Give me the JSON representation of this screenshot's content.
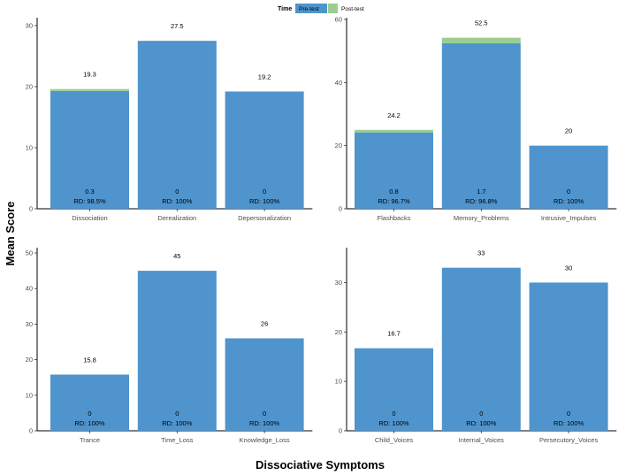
{
  "chart_data": {
    "type": "bar",
    "title": "",
    "xlabel": "Dissociative Symptoms",
    "ylabel": "Mean Score",
    "legend": {
      "title": "Time",
      "position": "top",
      "entries": [
        {
          "name": "Pre-test",
          "color": "#4f94cd"
        },
        {
          "name": "Post-test",
          "color": "#9acd8f"
        }
      ]
    },
    "panels": [
      {
        "ylim": [
          0,
          31
        ],
        "yticks": [
          0,
          10,
          20,
          30
        ],
        "categories": [
          "Dissociation",
          "Derealization",
          "Depersonalization"
        ],
        "series": [
          {
            "name": "Pre-test",
            "values": [
              19.3,
              27.5,
              19.2
            ]
          },
          {
            "name": "Post-test",
            "values": [
              0.3,
              0,
              0
            ]
          }
        ],
        "top_labels": [
          "19.3",
          "27.5",
          "19.2"
        ],
        "post_labels": [
          "0.3",
          "0",
          "0"
        ],
        "rd_labels": [
          "RD: 98.5%",
          "RD: 100%",
          "RD: 100%"
        ]
      },
      {
        "ylim": [
          0,
          60
        ],
        "yticks": [
          0,
          20,
          40,
          60
        ],
        "categories": [
          "Flashbacks",
          "Memory_Problems",
          "Intrusive_Impulses"
        ],
        "series": [
          {
            "name": "Pre-test",
            "values": [
              24.2,
              52.5,
              20
            ]
          },
          {
            "name": "Post-test",
            "values": [
              0.8,
              1.7,
              0
            ]
          }
        ],
        "top_labels": [
          "24.2",
          "52.5",
          "20"
        ],
        "post_labels": [
          "0.8",
          "1.7",
          "0"
        ],
        "rd_labels": [
          "RD: 96.7%",
          "RD: 96.8%",
          "RD: 100%"
        ]
      },
      {
        "ylim": [
          0,
          51
        ],
        "yticks": [
          0,
          10,
          20,
          30,
          40,
          50
        ],
        "categories": [
          "Trance",
          "Time_Loss",
          "Knowledge_Loss"
        ],
        "series": [
          {
            "name": "Pre-test",
            "values": [
              15.8,
              45,
              26
            ]
          },
          {
            "name": "Post-test",
            "values": [
              0,
              0,
              0
            ]
          }
        ],
        "top_labels": [
          "15.8",
          "45",
          "26"
        ],
        "post_labels": [
          "0",
          "0",
          "0"
        ],
        "rd_labels": [
          "RD: 100%",
          "RD: 100%",
          "RD: 100%"
        ]
      },
      {
        "ylim": [
          0,
          36.7
        ],
        "yticks": [
          0,
          10,
          20,
          30
        ],
        "categories": [
          "Child_Voices",
          "Internal_Voices",
          "Persecutory_Voices"
        ],
        "series": [
          {
            "name": "Pre-test",
            "values": [
              16.7,
              33,
              30
            ]
          },
          {
            "name": "Post-test",
            "values": [
              0,
              0,
              0
            ]
          }
        ],
        "top_labels": [
          "16.7",
          "33",
          "30"
        ],
        "post_labels": [
          "0",
          "0",
          "0"
        ],
        "rd_labels": [
          "RD: 100%",
          "RD: 100%",
          "RD: 100%"
        ]
      }
    ]
  }
}
